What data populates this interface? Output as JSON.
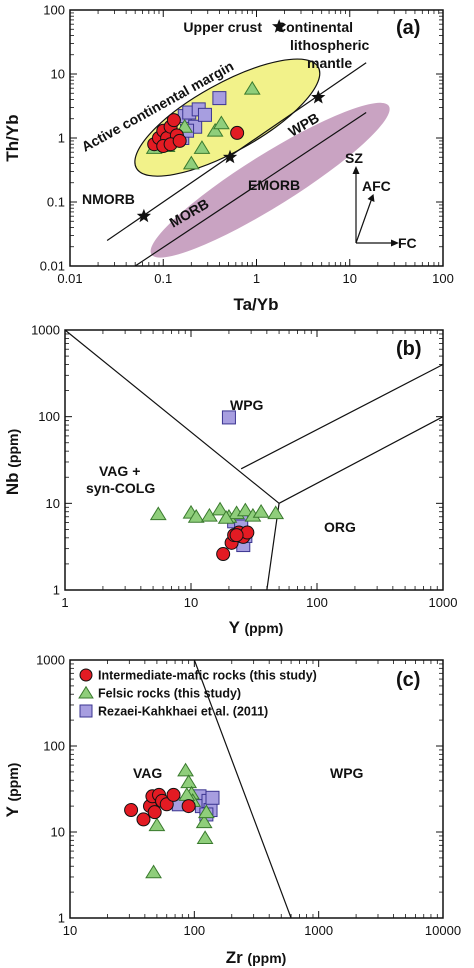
{
  "colors": {
    "intermediate": "#e31b23",
    "felsic": "#8fce7b",
    "rezaei": "#a79ee0",
    "active_margin_fill": "#f2f28a",
    "mantle_array_fill": "#c9a3c2",
    "outline": "#111111"
  },
  "legend": [
    {
      "key": "intermediate",
      "marker": "circle",
      "label": "Intermediate-mafic rocks (this study)"
    },
    {
      "key": "felsic",
      "marker": "triangle",
      "label": "Felsic rocks (this study)"
    },
    {
      "key": "rezaei",
      "marker": "square",
      "label": "Rezaei-Kahkhaei et al. (2011)"
    }
  ],
  "chart_data": [
    {
      "panel": "(a)",
      "type": "scatter",
      "xlabel": "Ta/Yb",
      "ylabel": "Th/Yb",
      "xscale": "log",
      "yscale": "log",
      "xlim": [
        0.01,
        100
      ],
      "ylim": [
        0.01,
        100
      ],
      "xticks": [
        "0.01",
        "0.1",
        "1",
        "10",
        "100"
      ],
      "yticks": [
        "0.01",
        "0.1",
        "1",
        "10",
        "100"
      ],
      "fields": [
        {
          "label": "Active continental margin",
          "type": "ellipse"
        },
        {
          "label": "MORB",
          "type": "mantle-array"
        },
        {
          "label": "WPB",
          "type": "mantle-array"
        }
      ],
      "reference_points": [
        {
          "label": "Upper crust",
          "x": 1.75,
          "y": 55
        },
        {
          "label": "Continental lithospheric mantle",
          "label_lines": [
            "Continental",
            "lithospheric",
            "mantle"
          ],
          "x": 4.6,
          "y": 4.3
        },
        {
          "label": "NMORB",
          "x": 0.062,
          "y": 0.06
        },
        {
          "label": "EMORB",
          "x": 0.52,
          "y": 0.5
        }
      ],
      "vectors": [
        "SZ",
        "AFC",
        "FC"
      ],
      "series": [
        {
          "key": "intermediate",
          "points": [
            [
              0.08,
              0.8
            ],
            [
              0.09,
              1.0
            ],
            [
              0.1,
              1.3
            ],
            [
              0.11,
              1.0
            ],
            [
              0.12,
              1.5
            ],
            [
              0.13,
              1.9
            ],
            [
              0.14,
              1.1
            ],
            [
              0.1,
              0.75
            ],
            [
              0.12,
              0.8
            ],
            [
              0.62,
              1.2
            ],
            [
              0.15,
              0.9
            ]
          ]
        },
        {
          "key": "felsic",
          "points": [
            [
              0.08,
              0.7
            ],
            [
              0.11,
              0.75
            ],
            [
              0.14,
              1.1
            ],
            [
              0.17,
              1.5
            ],
            [
              0.2,
              0.4
            ],
            [
              0.26,
              0.7
            ],
            [
              0.36,
              1.3
            ],
            [
              0.42,
              1.7
            ],
            [
              0.9,
              5.9
            ]
          ]
        },
        {
          "key": "rezaei",
          "points": [
            [
              0.17,
              2.2
            ],
            [
              0.19,
              2.5
            ],
            [
              0.22,
              1.5
            ],
            [
              0.24,
              2.8
            ],
            [
              0.28,
              2.3
            ],
            [
              0.4,
              4.2
            ],
            [
              0.16,
              1.0
            ],
            [
              0.18,
              1.3
            ]
          ]
        }
      ]
    },
    {
      "panel": "(b)",
      "type": "scatter",
      "xlabel": "Y",
      "xunit": "(ppm)",
      "ylabel": "Nb",
      "yunit": "(ppm)",
      "xscale": "log",
      "yscale": "log",
      "xlim": [
        1,
        1000
      ],
      "ylim": [
        1,
        1000
      ],
      "xticks": [
        "1",
        "10",
        "100",
        "1000"
      ],
      "yticks": [
        "1",
        "10",
        "100",
        "1000"
      ],
      "fields": [
        {
          "label": "WPG"
        },
        {
          "label": "VAG + syn-COLG",
          "label_lines": [
            "VAG +",
            "syn-COLG"
          ]
        },
        {
          "label": "ORG"
        }
      ],
      "series": [
        {
          "key": "intermediate",
          "points": [
            [
              18,
              2.6
            ],
            [
              21,
              3.5
            ],
            [
              22,
              4.3
            ],
            [
              24,
              4.6
            ],
            [
              26,
              4.1
            ],
            [
              28,
              4.6
            ],
            [
              23,
              4.3
            ]
          ]
        },
        {
          "key": "felsic",
          "points": [
            [
              5.5,
              7.5
            ],
            [
              10,
              7.8
            ],
            [
              11,
              7.0
            ],
            [
              14,
              7.2
            ],
            [
              17,
              8.5
            ],
            [
              20,
              7.0
            ],
            [
              23,
              7.7
            ],
            [
              27,
              8.3
            ],
            [
              31,
              7.2
            ],
            [
              36,
              8.0
            ],
            [
              47,
              7.7
            ],
            [
              19,
              6.8
            ]
          ]
        },
        {
          "key": "rezaei",
          "points": [
            [
              20,
              98
            ],
            [
              22,
              6.2
            ],
            [
              25,
              6.3
            ],
            [
              25,
              5.4
            ],
            [
              26,
              3.3
            ],
            [
              27,
              4.2
            ]
          ]
        }
      ]
    },
    {
      "panel": "(c)",
      "type": "scatter",
      "xlabel": "Zr",
      "xunit": "(ppm)",
      "ylabel": "Y",
      "yunit": "(ppm)",
      "xscale": "log",
      "yscale": "log",
      "xlim": [
        10,
        10000
      ],
      "ylim": [
        1,
        1000
      ],
      "xticks": [
        "10",
        "100",
        "1000",
        "10000"
      ],
      "yticks": [
        "1",
        "10",
        "100",
        "1000"
      ],
      "fields": [
        {
          "label": "VAG"
        },
        {
          "label": "WPG"
        }
      ],
      "series": [
        {
          "key": "intermediate",
          "points": [
            [
              31,
              18
            ],
            [
              39,
              14
            ],
            [
              44,
              20
            ],
            [
              46,
              26
            ],
            [
              52,
              27
            ],
            [
              55,
              23
            ],
            [
              60,
              21
            ],
            [
              68,
              27
            ],
            [
              48,
              17
            ],
            [
              90,
              20
            ]
          ]
        },
        {
          "key": "felsic",
          "points": [
            [
              47,
              3.4
            ],
            [
              50,
              12
            ],
            [
              85,
              52
            ],
            [
              90,
              38
            ],
            [
              95,
              28
            ],
            [
              120,
              13
            ],
            [
              122,
              8.5
            ],
            [
              125,
              17
            ],
            [
              97,
              23
            ],
            [
              87,
              27
            ]
          ]
        },
        {
          "key": "rezaei",
          "points": [
            [
              75,
              21
            ],
            [
              100,
              23
            ],
            [
              110,
              26
            ],
            [
              115,
              20
            ],
            [
              130,
              23
            ],
            [
              135,
              18
            ],
            [
              140,
              25
            ],
            [
              125,
              16
            ]
          ]
        }
      ]
    }
  ]
}
